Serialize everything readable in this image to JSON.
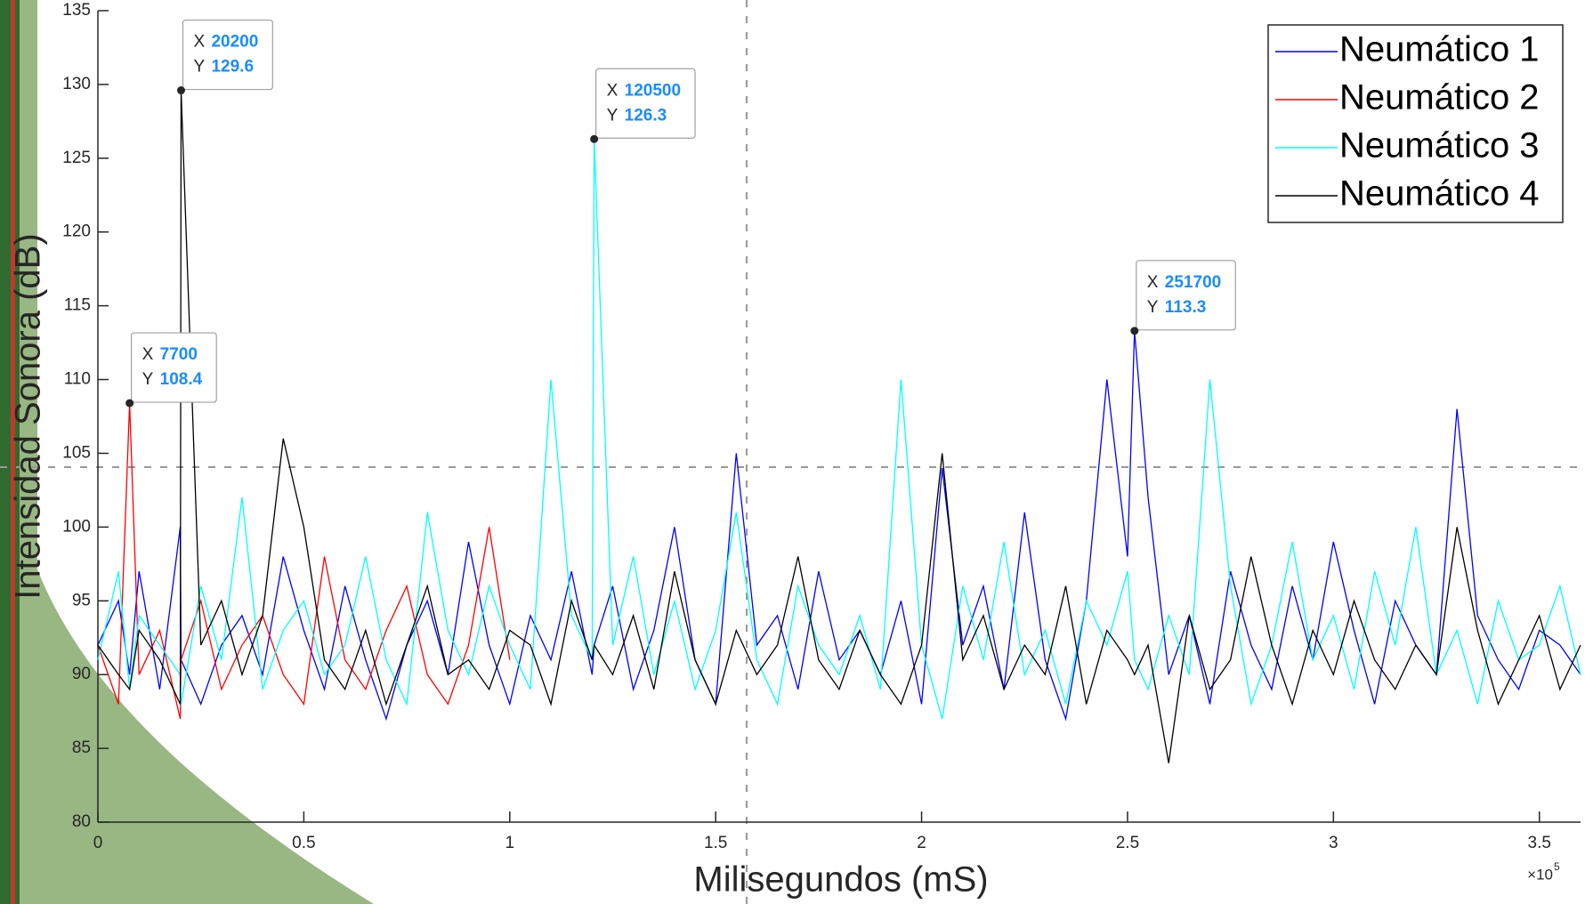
{
  "chart_data": {
    "type": "line",
    "xlabel": "Milisegundos (mS)",
    "ylabel": "Intensidad Sonora (dB)",
    "x_multiplier": {
      "base": "×10",
      "power": "5"
    },
    "xlim": [
      0,
      360000
    ],
    "ylim": [
      80,
      135
    ],
    "xticks": [
      0,
      {
        "value": 50000,
        "label": "0.5"
      },
      {
        "value": 100000,
        "label": "1"
      },
      {
        "value": 150000,
        "label": "1.5"
      },
      {
        "value": 200000,
        "label": "2"
      },
      {
        "value": 250000,
        "label": "2.5"
      },
      {
        "value": 300000,
        "label": "3"
      },
      {
        "value": 350000,
        "label": "3.5"
      }
    ],
    "yticks": [
      80,
      85,
      90,
      95,
      100,
      105,
      110,
      115,
      120,
      125,
      130,
      135
    ],
    "grid": false,
    "legend": "northeast",
    "x": [
      0,
      5000,
      7700,
      10000,
      15000,
      20000,
      20200,
      25000,
      30000,
      35000,
      40000,
      45000,
      50000,
      55000,
      60000,
      65000,
      70000,
      75000,
      80000,
      85000,
      90000,
      95000,
      100000,
      105000,
      110000,
      115000,
      120000,
      120500,
      125000,
      130000,
      135000,
      140000,
      145000,
      150000,
      155000,
      160000,
      165000,
      170000,
      175000,
      180000,
      185000,
      190000,
      195000,
      200000,
      205000,
      210000,
      215000,
      220000,
      225000,
      230000,
      235000,
      240000,
      245000,
      250000,
      251700,
      255000,
      260000,
      265000,
      270000,
      275000,
      280000,
      285000,
      290000,
      295000,
      300000,
      305000,
      310000,
      315000,
      320000,
      325000,
      330000,
      335000,
      340000,
      345000,
      350000,
      355000,
      360000
    ],
    "series": [
      {
        "name": "Neumático 1",
        "color": "#0000ff",
        "values": [
          92,
          95,
          90,
          97,
          89,
          100,
          91,
          88,
          92,
          94,
          90,
          98,
          93,
          89,
          96,
          91,
          87,
          92,
          95,
          90,
          99,
          92,
          88,
          94,
          91,
          97,
          90,
          92,
          96,
          89,
          93,
          100,
          91,
          88,
          105,
          92,
          94,
          89,
          97,
          91,
          93,
          90,
          95,
          88,
          104,
          92,
          96,
          89,
          101,
          91,
          87,
          95,
          110,
          98,
          113.3,
          102,
          90,
          94,
          88,
          97,
          92,
          89,
          96,
          91,
          99,
          93,
          88,
          95,
          92,
          90,
          108,
          94,
          91,
          89,
          93,
          92,
          90
        ]
      },
      {
        "name": "Neumático 2",
        "color": "#ff0000",
        "values": [
          92,
          88,
          108.4,
          90,
          93,
          87,
          91,
          95,
          89,
          92,
          94,
          90,
          88,
          98,
          91,
          89,
          93,
          96,
          90,
          88,
          92,
          100,
          91,
          null,
          null,
          null,
          null,
          null,
          null,
          null,
          null,
          null,
          null,
          null,
          null,
          null,
          null,
          null,
          null,
          null,
          null,
          null,
          null,
          null,
          null,
          null,
          null,
          null,
          null,
          null,
          null,
          null,
          null,
          null,
          null,
          null,
          null,
          null,
          null,
          null,
          null,
          null,
          null,
          null,
          null,
          null,
          null,
          null,
          null,
          null,
          null,
          null,
          null,
          null,
          null,
          null,
          null
        ]
      },
      {
        "name": "Neumático 3",
        "color": "#00ffff",
        "values": [
          91,
          97,
          89,
          94,
          92,
          90,
          88,
          96,
          91,
          102,
          89,
          93,
          95,
          90,
          92,
          98,
          91,
          88,
          101,
          93,
          90,
          96,
          92,
          89,
          110,
          94,
          91,
          126.3,
          92,
          98,
          90,
          95,
          89,
          93,
          101,
          91,
          88,
          96,
          92,
          90,
          94,
          89,
          110,
          92,
          87,
          96,
          91,
          99,
          90,
          93,
          88,
          95,
          92,
          97,
          91,
          89,
          94,
          90,
          110,
          96,
          88,
          92,
          99,
          91,
          94,
          89,
          97,
          92,
          100,
          90,
          93,
          88,
          95,
          91,
          92,
          96,
          90
        ]
      },
      {
        "name": "Neumático 4",
        "color": "#000000",
        "values": [
          92,
          90,
          89,
          93,
          91,
          88,
          129.6,
          92,
          95,
          90,
          94,
          106,
          100,
          91,
          89,
          93,
          88,
          92,
          96,
          90,
          91,
          89,
          93,
          92,
          88,
          95,
          91,
          92,
          90,
          94,
          89,
          97,
          91,
          88,
          93,
          90,
          92,
          98,
          91,
          89,
          93,
          90,
          88,
          92,
          105,
          91,
          94,
          89,
          92,
          90,
          96,
          88,
          93,
          91,
          90,
          92,
          84,
          94,
          89,
          91,
          98,
          92,
          88,
          93,
          90,
          95,
          91,
          89,
          92,
          90,
          100,
          93,
          88,
          91,
          94,
          89,
          92
        ]
      }
    ],
    "datatip_labels": [
      "X",
      "Y"
    ],
    "datatips": [
      {
        "x": 7700,
        "y": 108.4
      },
      {
        "x": 20200,
        "y": 129.6
      },
      {
        "x": 120500,
        "y": 126.3
      },
      {
        "x": 251700,
        "y": 113.3
      }
    ]
  }
}
